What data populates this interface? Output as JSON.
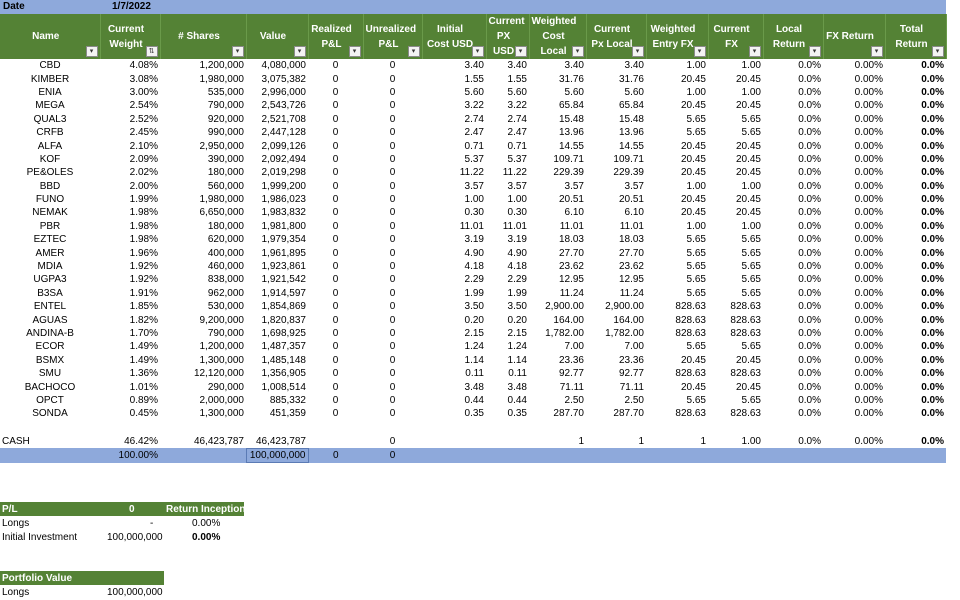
{
  "date": {
    "label": "Date",
    "value": "1/7/2022"
  },
  "columns": [
    "Name",
    "Current Weight",
    "# Shares",
    "Value",
    "Realized P&L",
    "Unrealized P&L",
    "Initial Cost USD",
    "Current PX USD",
    "Weighted Cost Local",
    "Current Px Local",
    "Weighted Entry FX",
    "Current FX",
    "Local Return",
    "FX Return",
    "Total Return"
  ],
  "rows": [
    [
      "CBD",
      "4.08%",
      "1,200,000",
      "4,080,000",
      "0",
      "0",
      "3.40",
      "3.40",
      "3.40",
      "3.40",
      "1.00",
      "1.00",
      "0.0%",
      "0.00%",
      "0.0%"
    ],
    [
      "KIMBER",
      "3.08%",
      "1,980,000",
      "3,075,382",
      "0",
      "0",
      "1.55",
      "1.55",
      "31.76",
      "31.76",
      "20.45",
      "20.45",
      "0.0%",
      "0.00%",
      "0.0%"
    ],
    [
      "ENIA",
      "3.00%",
      "535,000",
      "2,996,000",
      "0",
      "0",
      "5.60",
      "5.60",
      "5.60",
      "5.60",
      "1.00",
      "1.00",
      "0.0%",
      "0.00%",
      "0.0%"
    ],
    [
      "MEGA",
      "2.54%",
      "790,000",
      "2,543,726",
      "0",
      "0",
      "3.22",
      "3.22",
      "65.84",
      "65.84",
      "20.45",
      "20.45",
      "0.0%",
      "0.00%",
      "0.0%"
    ],
    [
      "QUAL3",
      "2.52%",
      "920,000",
      "2,521,708",
      "0",
      "0",
      "2.74",
      "2.74",
      "15.48",
      "15.48",
      "5.65",
      "5.65",
      "0.0%",
      "0.00%",
      "0.0%"
    ],
    [
      "CRFB",
      "2.45%",
      "990,000",
      "2,447,128",
      "0",
      "0",
      "2.47",
      "2.47",
      "13.96",
      "13.96",
      "5.65",
      "5.65",
      "0.0%",
      "0.00%",
      "0.0%"
    ],
    [
      "ALFA",
      "2.10%",
      "2,950,000",
      "2,099,126",
      "0",
      "0",
      "0.71",
      "0.71",
      "14.55",
      "14.55",
      "20.45",
      "20.45",
      "0.0%",
      "0.00%",
      "0.0%"
    ],
    [
      "KOF",
      "2.09%",
      "390,000",
      "2,092,494",
      "0",
      "0",
      "5.37",
      "5.37",
      "109.71",
      "109.71",
      "20.45",
      "20.45",
      "0.0%",
      "0.00%",
      "0.0%"
    ],
    [
      "PE&OLES",
      "2.02%",
      "180,000",
      "2,019,298",
      "0",
      "0",
      "11.22",
      "11.22",
      "229.39",
      "229.39",
      "20.45",
      "20.45",
      "0.0%",
      "0.00%",
      "0.0%"
    ],
    [
      "BBD",
      "2.00%",
      "560,000",
      "1,999,200",
      "0",
      "0",
      "3.57",
      "3.57",
      "3.57",
      "3.57",
      "1.00",
      "1.00",
      "0.0%",
      "0.00%",
      "0.0%"
    ],
    [
      "FUNO",
      "1.99%",
      "1,980,000",
      "1,986,023",
      "0",
      "0",
      "1.00",
      "1.00",
      "20.51",
      "20.51",
      "20.45",
      "20.45",
      "0.0%",
      "0.00%",
      "0.0%"
    ],
    [
      "NEMAK",
      "1.98%",
      "6,650,000",
      "1,983,832",
      "0",
      "0",
      "0.30",
      "0.30",
      "6.10",
      "6.10",
      "20.45",
      "20.45",
      "0.0%",
      "0.00%",
      "0.0%"
    ],
    [
      "PBR",
      "1.98%",
      "180,000",
      "1,981,800",
      "0",
      "0",
      "11.01",
      "11.01",
      "11.01",
      "11.01",
      "1.00",
      "1.00",
      "0.0%",
      "0.00%",
      "0.0%"
    ],
    [
      "EZTEC",
      "1.98%",
      "620,000",
      "1,979,354",
      "0",
      "0",
      "3.19",
      "3.19",
      "18.03",
      "18.03",
      "5.65",
      "5.65",
      "0.0%",
      "0.00%",
      "0.0%"
    ],
    [
      "AMER",
      "1.96%",
      "400,000",
      "1,961,895",
      "0",
      "0",
      "4.90",
      "4.90",
      "27.70",
      "27.70",
      "5.65",
      "5.65",
      "0.0%",
      "0.00%",
      "0.0%"
    ],
    [
      "MDIA",
      "1.92%",
      "460,000",
      "1,923,861",
      "0",
      "0",
      "4.18",
      "4.18",
      "23.62",
      "23.62",
      "5.65",
      "5.65",
      "0.0%",
      "0.00%",
      "0.0%"
    ],
    [
      "UGPA3",
      "1.92%",
      "838,000",
      "1,921,542",
      "0",
      "0",
      "2.29",
      "2.29",
      "12.95",
      "12.95",
      "5.65",
      "5.65",
      "0.0%",
      "0.00%",
      "0.0%"
    ],
    [
      "B3SA",
      "1.91%",
      "962,000",
      "1,914,597",
      "0",
      "0",
      "1.99",
      "1.99",
      "11.24",
      "11.24",
      "5.65",
      "5.65",
      "0.0%",
      "0.00%",
      "0.0%"
    ],
    [
      "ENTEL",
      "1.85%",
      "530,000",
      "1,854,869",
      "0",
      "0",
      "3.50",
      "3.50",
      "2,900.00",
      "2,900.00",
      "828.63",
      "828.63",
      "0.0%",
      "0.00%",
      "0.0%"
    ],
    [
      "AGUAS",
      "1.82%",
      "9,200,000",
      "1,820,837",
      "0",
      "0",
      "0.20",
      "0.20",
      "164.00",
      "164.00",
      "828.63",
      "828.63",
      "0.0%",
      "0.00%",
      "0.0%"
    ],
    [
      "ANDINA-B",
      "1.70%",
      "790,000",
      "1,698,925",
      "0",
      "0",
      "2.15",
      "2.15",
      "1,782.00",
      "1,782.00",
      "828.63",
      "828.63",
      "0.0%",
      "0.00%",
      "0.0%"
    ],
    [
      "ECOR",
      "1.49%",
      "1,200,000",
      "1,487,357",
      "0",
      "0",
      "1.24",
      "1.24",
      "7.00",
      "7.00",
      "5.65",
      "5.65",
      "0.0%",
      "0.00%",
      "0.0%"
    ],
    [
      "BSMX",
      "1.49%",
      "1,300,000",
      "1,485,148",
      "0",
      "0",
      "1.14",
      "1.14",
      "23.36",
      "23.36",
      "20.45",
      "20.45",
      "0.0%",
      "0.00%",
      "0.0%"
    ],
    [
      "SMU",
      "1.36%",
      "12,120,000",
      "1,356,905",
      "0",
      "0",
      "0.11",
      "0.11",
      "92.77",
      "92.77",
      "828.63",
      "828.63",
      "0.0%",
      "0.00%",
      "0.0%"
    ],
    [
      "BACHOCO",
      "1.01%",
      "290,000",
      "1,008,514",
      "0",
      "0",
      "3.48",
      "3.48",
      "71.11",
      "71.11",
      "20.45",
      "20.45",
      "0.0%",
      "0.00%",
      "0.0%"
    ],
    [
      "OPCT",
      "0.89%",
      "2,000,000",
      "885,332",
      "0",
      "0",
      "0.44",
      "0.44",
      "2.50",
      "2.50",
      "5.65",
      "5.65",
      "0.0%",
      "0.00%",
      "0.0%"
    ],
    [
      "SONDA",
      "0.45%",
      "1,300,000",
      "451,359",
      "0",
      "0",
      "0.35",
      "0.35",
      "287.70",
      "287.70",
      "828.63",
      "828.63",
      "0.0%",
      "0.00%",
      "0.0%"
    ]
  ],
  "cash": [
    "CASH",
    "46.42%",
    "46,423,787",
    "46,423,787",
    "",
    "0",
    "",
    "",
    "1",
    "1",
    "1",
    "1.00",
    "0.0%",
    "0.00%",
    "0.0%"
  ],
  "total": [
    "",
    "100.00%",
    "",
    "100,000,000",
    "0",
    "0",
    "",
    "",
    "",
    "",
    "",
    "",
    "",
    "",
    ""
  ],
  "pl": {
    "title": "P/L",
    "title_value": "0",
    "inception_label": "Return Inception",
    "longs_label": "Longs",
    "longs_value": "-",
    "longs_return": "0.00%",
    "init_label": "Initial Investment",
    "init_value": "100,000,000",
    "init_return": "0.00%"
  },
  "pv": {
    "title": "Portfolio Value",
    "longs_label": "Longs",
    "longs_value": "100,000,000"
  },
  "icons": {
    "filter": "dropdown-arrow-icon",
    "sorted_filter": "sort-filter-icon"
  },
  "colors": {
    "header_green": "#548235",
    "total_blue": "#8EA9DB"
  }
}
